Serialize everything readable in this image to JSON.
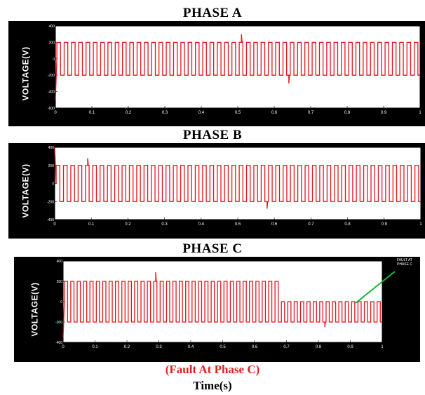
{
  "panels": [
    {
      "title": "PHASE A"
    },
    {
      "title": "PHASE B"
    },
    {
      "title": "PHASE C"
    }
  ],
  "caption": "(Fault At Phase C)",
  "xlabel": "Time(s)",
  "annotation": {
    "line1": "FAULT AT",
    "line2": "PHASE C"
  },
  "colors": {
    "signal": "#e8141e",
    "frame": "#000000",
    "plot_bg": "#ffffff",
    "annotation_line": "#1db33a"
  },
  "chart_data": [
    {
      "type": "line",
      "title": "PHASE A",
      "ylabel": "VOLTAGE(V)",
      "xlim": [
        0,
        1
      ],
      "ylim": [
        -600,
        400
      ],
      "xticks": [
        "0",
        "0.1",
        "0.2",
        "0.3",
        "0.4",
        "0.5",
        "0.6",
        "0.7",
        "0.8",
        "0.9",
        "1"
      ],
      "yticks": [
        "400",
        "200",
        "0",
        "-200",
        "-400",
        "-600"
      ],
      "series": [
        {
          "waveform": "square",
          "frequency_hz": 50,
          "amplitude": 200,
          "start_transient": -500,
          "fault_time": null,
          "post_fault_amplitude": 200,
          "spikes": [
            [
              0.29,
              -300
            ],
            [
              0.51,
              300
            ],
            [
              0.64,
              -300
            ]
          ]
        }
      ]
    },
    {
      "type": "line",
      "title": "PHASE B",
      "ylabel": "VOLTAGE(V)",
      "xlim": [
        0,
        1
      ],
      "ylim": [
        -400,
        400
      ],
      "xticks": [
        "0",
        "0.1",
        "0.2",
        "0.3",
        "0.4",
        "0.5",
        "0.6",
        "0.7",
        "0.8",
        "0.9",
        "1"
      ],
      "yticks": [
        "400",
        "200",
        "0",
        "-200",
        "-400"
      ],
      "series": [
        {
          "waveform": "square",
          "frequency_hz": 50,
          "amplitude": 200,
          "start_transient": 400,
          "fault_time": null,
          "post_fault_amplitude": 200,
          "spikes": [
            [
              0.09,
              280
            ],
            [
              0.21,
              -280
            ],
            [
              0.58,
              -280
            ],
            [
              0.72,
              280
            ]
          ]
        }
      ]
    },
    {
      "type": "line",
      "title": "PHASE C",
      "ylabel": "VOLTAGE(V)",
      "xlim": [
        0,
        1
      ],
      "ylim": [
        -400,
        400
      ],
      "xticks": [
        "0",
        "0.1",
        "0.2",
        "0.3",
        "0.4",
        "0.5",
        "0.6",
        "0.7",
        "0.8",
        "0.9",
        "1"
      ],
      "yticks": [
        "400",
        "200",
        "0",
        "-200",
        "-400"
      ],
      "series": [
        {
          "waveform": "square",
          "frequency_hz": 50,
          "amplitude": 200,
          "start_transient": -350,
          "fault_time": 0.67,
          "post_fault_amplitude": 200,
          "post_fault_high": 0,
          "spikes": [
            [
              0.29,
              290
            ],
            [
              0.82,
              -250
            ]
          ]
        }
      ]
    }
  ]
}
